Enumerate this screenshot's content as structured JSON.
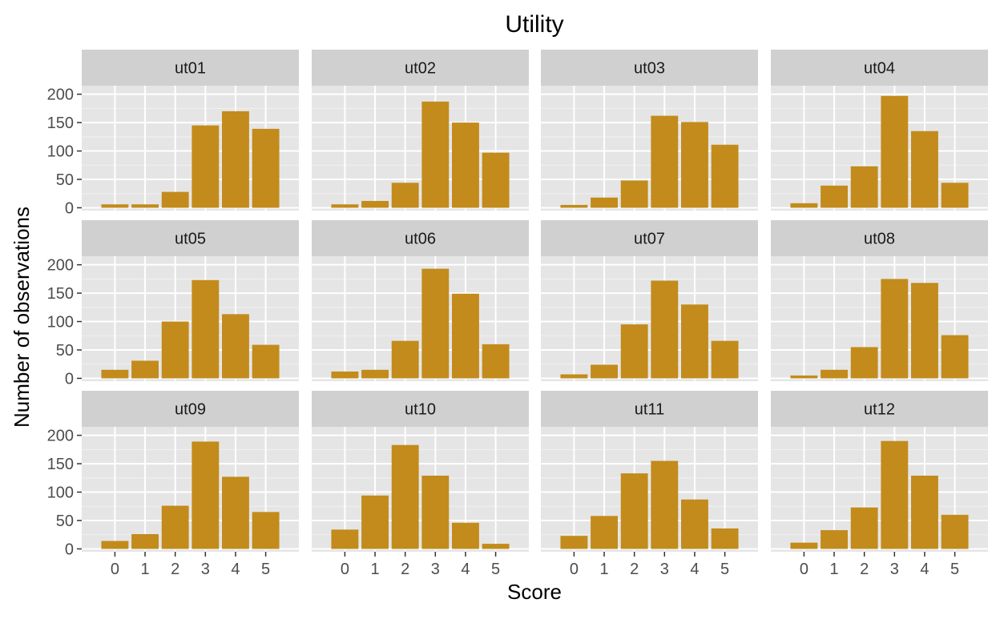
{
  "chart_data": {
    "type": "bar",
    "title": "Utility",
    "xlabel": "Score",
    "ylabel": "Number of observations",
    "layout": "facet-grid 3x4",
    "bar_color": "#C28B1B",
    "panel_background": "#E5E5E5",
    "strip_background": "#D0D0D0",
    "grid": true,
    "x_categories": [
      0,
      1,
      2,
      3,
      4,
      5
    ],
    "x_tick_labels": [
      "0",
      "1",
      "2",
      "3",
      "4",
      "5"
    ],
    "y_ticks": [
      0,
      50,
      100,
      150,
      200
    ],
    "y_tick_labels": [
      "0",
      "50",
      "100",
      "150",
      "200"
    ],
    "ylim": [
      -5,
      215
    ],
    "panels": [
      {
        "name": "ut01",
        "values": [
          6,
          6,
          28,
          145,
          170,
          139
        ]
      },
      {
        "name": "ut02",
        "values": [
          6,
          12,
          44,
          187,
          150,
          97
        ]
      },
      {
        "name": "ut03",
        "values": [
          5,
          18,
          48,
          162,
          151,
          111
        ]
      },
      {
        "name": "ut04",
        "values": [
          8,
          39,
          73,
          197,
          135,
          44
        ]
      },
      {
        "name": "ut05",
        "values": [
          15,
          31,
          100,
          173,
          113,
          59
        ]
      },
      {
        "name": "ut06",
        "values": [
          12,
          15,
          66,
          193,
          149,
          60
        ]
      },
      {
        "name": "ut07",
        "values": [
          7,
          24,
          95,
          172,
          130,
          66
        ]
      },
      {
        "name": "ut08",
        "values": [
          5,
          15,
          55,
          175,
          168,
          76
        ]
      },
      {
        "name": "ut09",
        "values": [
          14,
          26,
          76,
          189,
          127,
          65
        ]
      },
      {
        "name": "ut10",
        "values": [
          34,
          94,
          183,
          129,
          46,
          9
        ]
      },
      {
        "name": "ut11",
        "values": [
          23,
          58,
          133,
          155,
          87,
          36
        ]
      },
      {
        "name": "ut12",
        "values": [
          11,
          33,
          73,
          190,
          129,
          60
        ]
      }
    ]
  }
}
